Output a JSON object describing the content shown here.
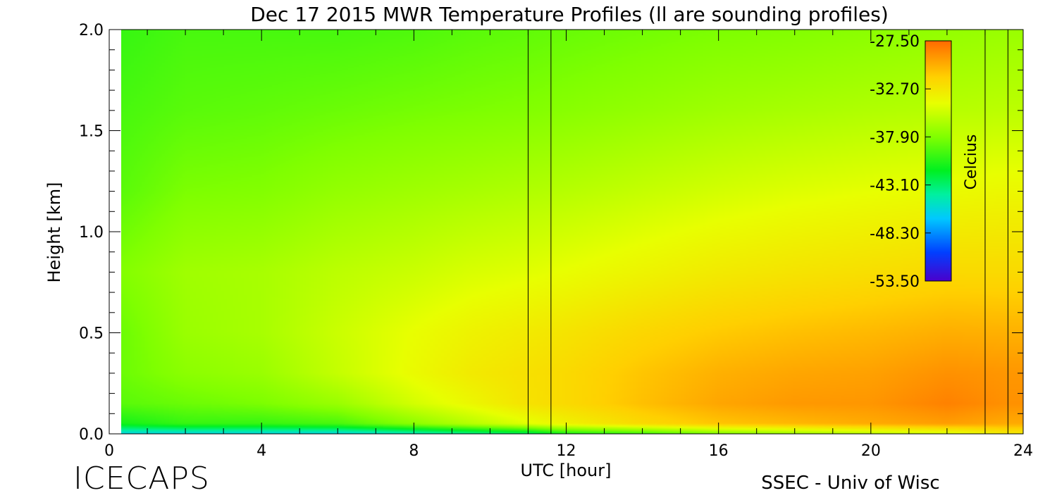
{
  "chart_data": {
    "type": "heatmap",
    "title": "Dec 17 2015 MWR Temperature Profiles (ll are sounding profiles)",
    "xlabel": "UTC [hour]",
    "ylabel": "Height [km]",
    "xlim": [
      0,
      24
    ],
    "ylim": [
      0,
      2.0
    ],
    "x_ticks": [
      "0",
      "4",
      "8",
      "12",
      "16",
      "20",
      "24"
    ],
    "y_ticks": [
      "0.0",
      "0.5",
      "1.0",
      "1.5",
      "2.0"
    ],
    "colorbar": {
      "label": "Celcius",
      "range": [
        -53.5,
        -27.5
      ],
      "ticks": [
        "-27.50",
        "-32.70",
        "-37.90",
        "-43.10",
        "-48.30",
        "-53.50"
      ]
    },
    "sounding_times": [
      11.0,
      11.6,
      23.0,
      23.6
    ],
    "temperature_profiles": {
      "hours": [
        0.3,
        2,
        4,
        6,
        8,
        9.5,
        11,
        12,
        14,
        16,
        18,
        20,
        22,
        23.6
      ],
      "heights_km": [
        0.0,
        0.05,
        0.15,
        0.3,
        0.5,
        0.8,
        1.2,
        1.6,
        2.0
      ],
      "values": [
        [
          -46,
          -41,
          -39,
          -38.5,
          -38.5,
          -37.8,
          -39,
          -39.5,
          -40
        ],
        [
          -46,
          -40,
          -38.5,
          -37.5,
          -37,
          -36.8,
          -38,
          -39,
          -39.5
        ],
        [
          -46,
          -40,
          -38,
          -37,
          -36.5,
          -36.5,
          -37.8,
          -38.8,
          -39.5
        ],
        [
          -46,
          -39.5,
          -37,
          -35.5,
          -35.3,
          -35.8,
          -37.2,
          -38.5,
          -39.5
        ],
        [
          -45,
          -37.5,
          -35,
          -34,
          -34.2,
          -35.3,
          -36.8,
          -38.2,
          -39.3
        ],
        [
          -44,
          -36,
          -33.8,
          -33,
          -33.5,
          -34.8,
          -36.5,
          -38,
          -39
        ],
        [
          -43,
          -34.5,
          -32.5,
          -32.4,
          -33,
          -34.5,
          -36.2,
          -37.8,
          -38.8
        ],
        [
          -41,
          -33.5,
          -32,
          -32,
          -32.6,
          -34.2,
          -36,
          -37.6,
          -38.6
        ],
        [
          -40,
          -32,
          -30.8,
          -31,
          -31.8,
          -33.6,
          -35.5,
          -37.2,
          -38.3
        ],
        [
          -38,
          -31,
          -29.8,
          -30.2,
          -31.2,
          -33,
          -35,
          -36.8,
          -38
        ],
        [
          -37,
          -30.5,
          -29.3,
          -29.8,
          -30.8,
          -32.6,
          -34.6,
          -36.5,
          -37.8
        ],
        [
          -36,
          -30,
          -29.2,
          -29.6,
          -30.5,
          -32.3,
          -34.3,
          -36.2,
          -37.5
        ],
        [
          -35,
          -29.5,
          -28.4,
          -29,
          -30.1,
          -32,
          -34,
          -36,
          -37.2
        ],
        [
          -33,
          -30,
          -29,
          -29.2,
          -30.2,
          -32,
          -33.8,
          -35.8,
          -37
        ]
      ]
    }
  },
  "footer": {
    "left_logo": "ICECAPS",
    "right_credit": "SSEC - Univ of Wisc"
  }
}
